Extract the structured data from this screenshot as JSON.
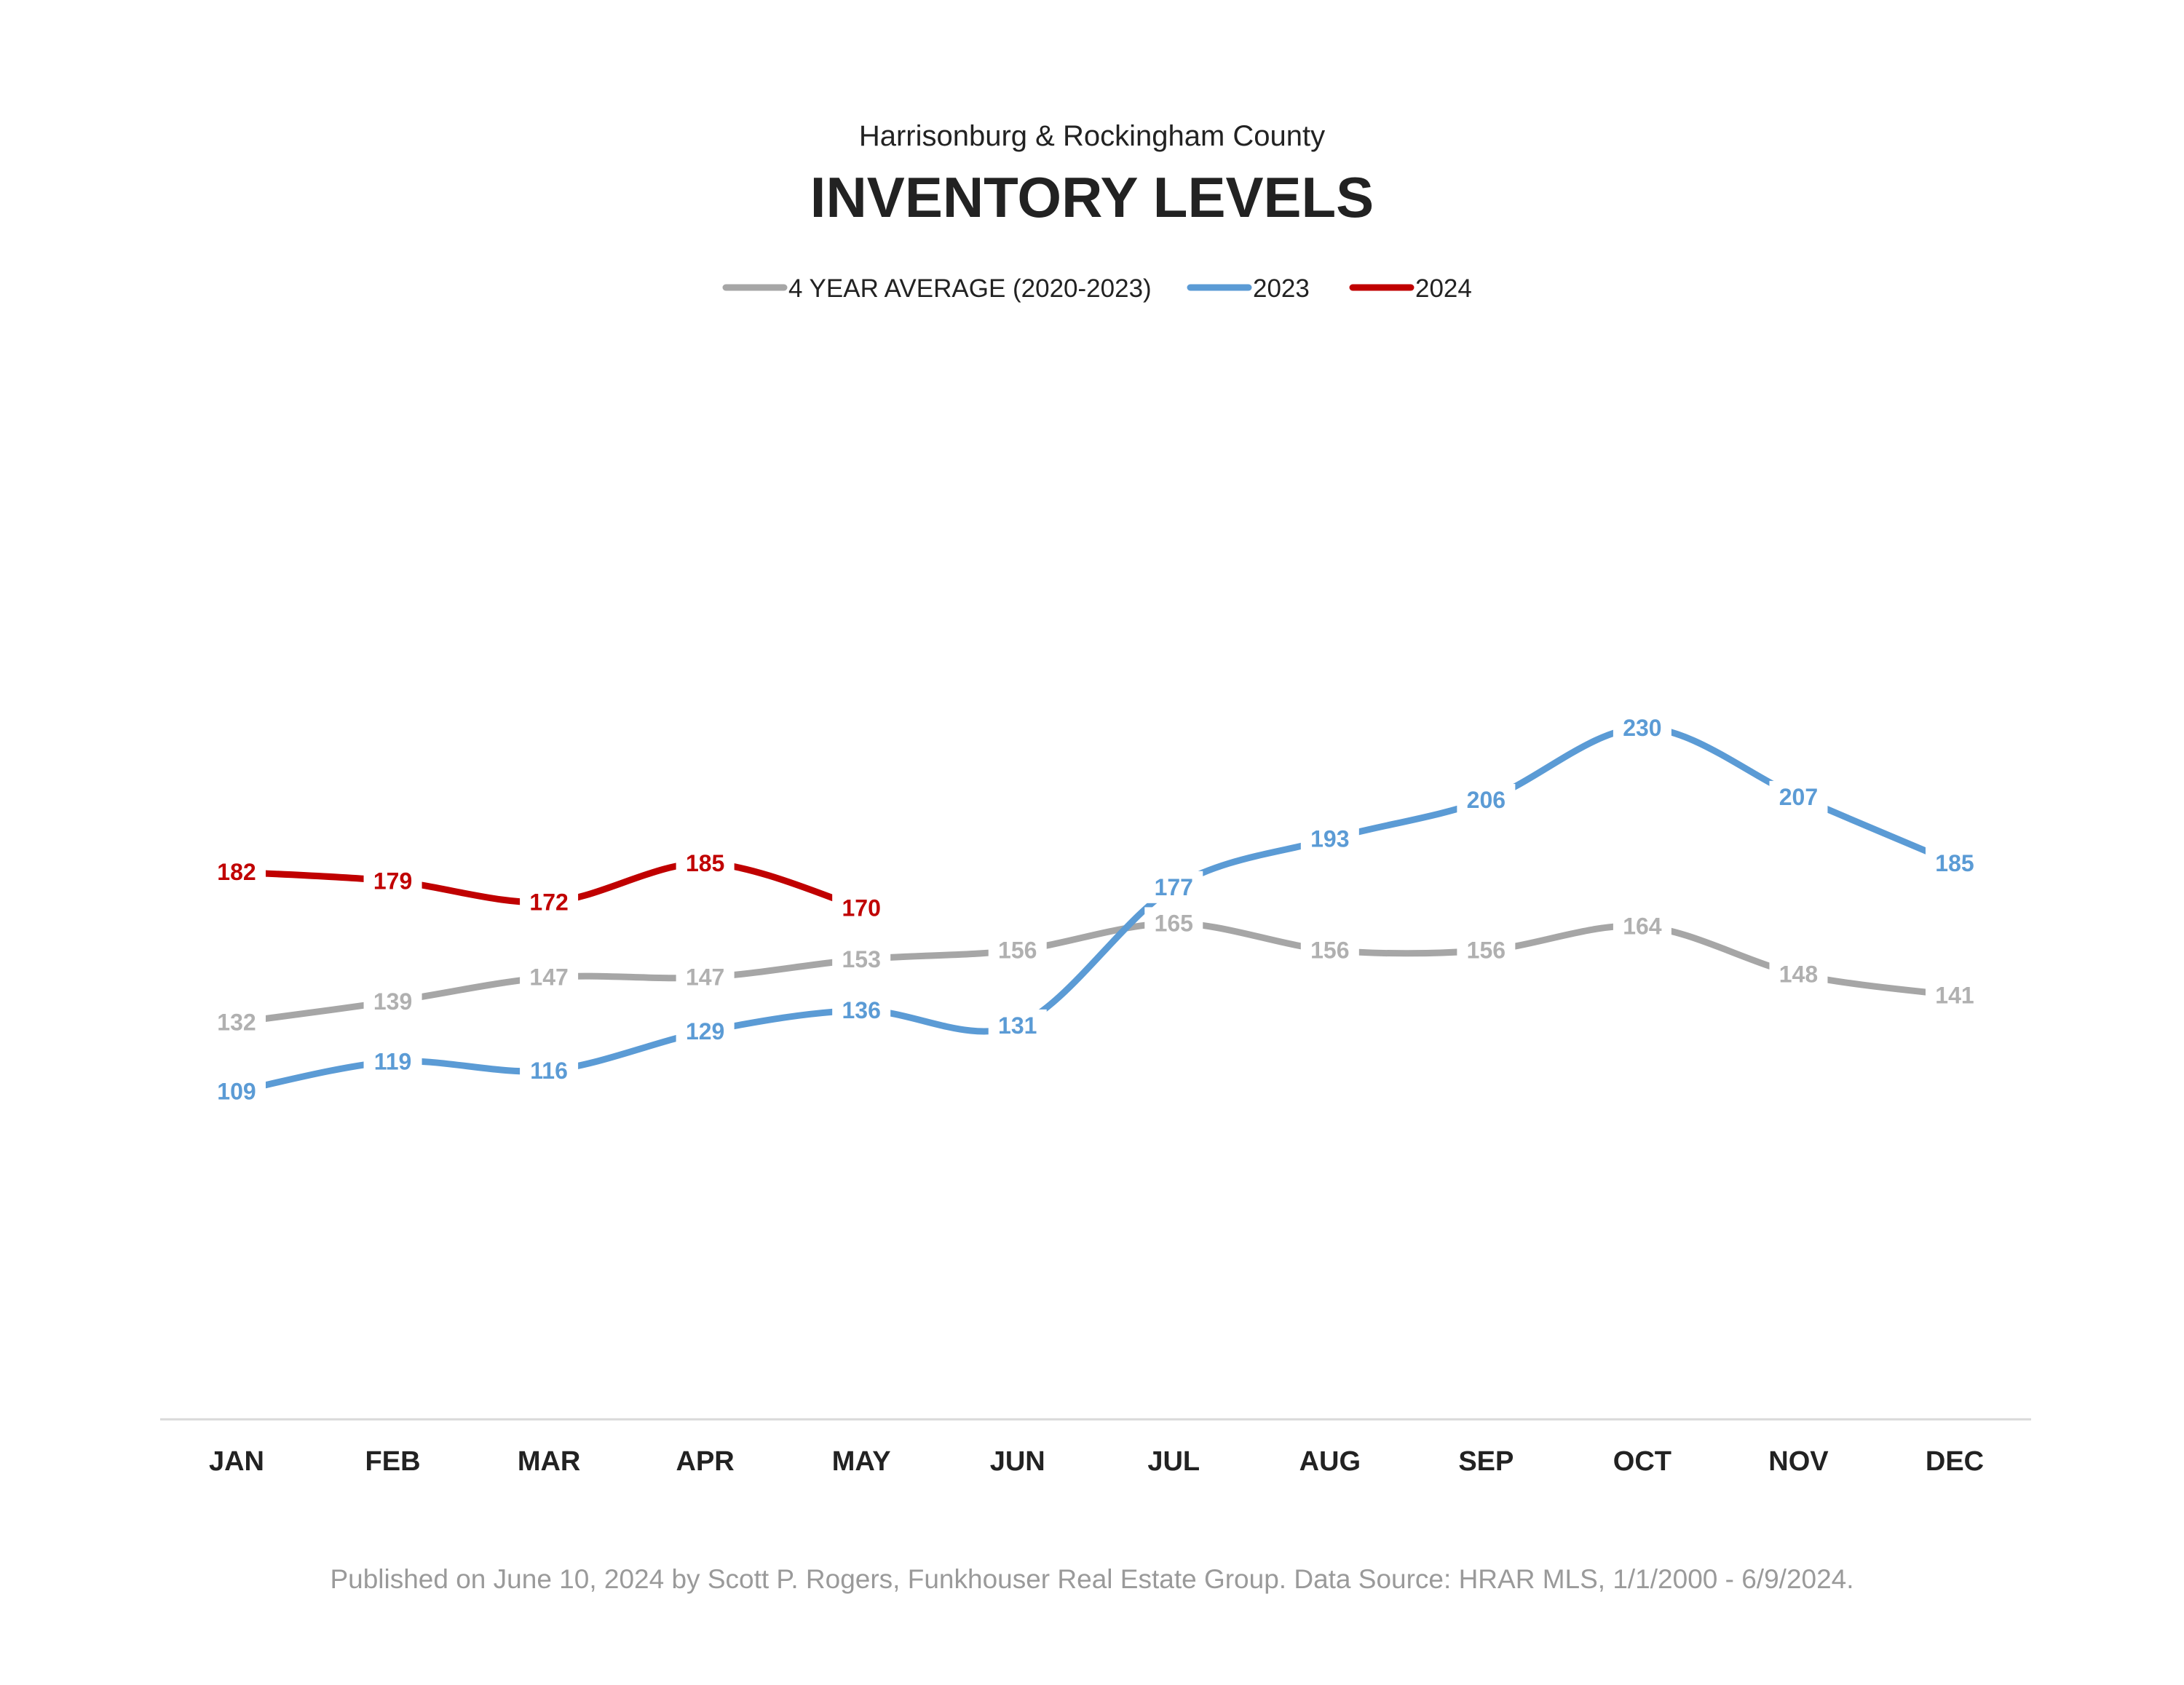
{
  "chart_data": {
    "type": "line",
    "subtitle": "Harrisonburg & Rockingham County",
    "title": "INVENTORY LEVELS",
    "categories": [
      "JAN",
      "FEB",
      "MAR",
      "APR",
      "MAY",
      "JUN",
      "JUL",
      "AUG",
      "SEP",
      "OCT",
      "NOV",
      "DEC"
    ],
    "series": [
      {
        "name": "4 YEAR AVERAGE (2020-2023)",
        "color": "#a6a6a6",
        "label_color": "#b0b0b0",
        "values": [
          132,
          139,
          147,
          147,
          153,
          156,
          165,
          156,
          156,
          164,
          148,
          141
        ]
      },
      {
        "name": "2023",
        "color": "#5b9bd5",
        "label_color": "#5b9bd5",
        "values": [
          109,
          119,
          116,
          129,
          136,
          131,
          177,
          193,
          206,
          230,
          207,
          185
        ]
      },
      {
        "name": "2024",
        "color": "#c00000",
        "label_color": "#c00000",
        "values": [
          182,
          179,
          172,
          185,
          170,
          null,
          null,
          null,
          null,
          null,
          null,
          null
        ]
      }
    ],
    "ylim": [
      0,
      250
    ],
    "grid": false,
    "smooth": true,
    "legend_position": "top-center",
    "footer": "Published on June 10, 2024 by Scott P. Rogers, Funkhouser Real Estate Group. Data Source: HRAR MLS, 1/1/2000 - 6/9/2024."
  }
}
